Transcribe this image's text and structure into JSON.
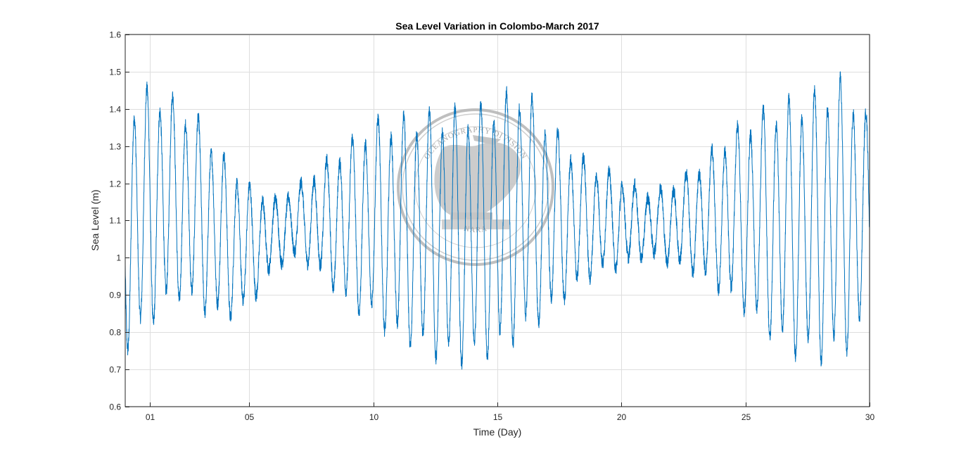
{
  "chart_data": {
    "type": "line",
    "title": "Sea Level Variation in Colombo-March 2017",
    "xlabel": "Time (Day)",
    "ylabel": "Sea Level (m)",
    "xlim": [
      0,
      30
    ],
    "ylim": [
      0.6,
      1.6
    ],
    "grid": true,
    "x_ticks": [
      {
        "value": 1,
        "label": "01"
      },
      {
        "value": 5,
        "label": "05"
      },
      {
        "value": 10,
        "label": "10"
      },
      {
        "value": 15,
        "label": "15"
      },
      {
        "value": 20,
        "label": "20"
      },
      {
        "value": 25,
        "label": "25"
      },
      {
        "value": 30,
        "label": "30"
      }
    ],
    "y_ticks": [
      {
        "value": 0.6,
        "label": "0.6"
      },
      {
        "value": 0.7,
        "label": "0.7"
      },
      {
        "value": 0.8,
        "label": "0.8"
      },
      {
        "value": 0.9,
        "label": "0.9"
      },
      {
        "value": 1.0,
        "label": "1"
      },
      {
        "value": 1.1,
        "label": "1.1"
      },
      {
        "value": 1.2,
        "label": "1.2"
      },
      {
        "value": 1.3,
        "label": "1.3"
      },
      {
        "value": 1.4,
        "label": "1.4"
      },
      {
        "value": 1.5,
        "label": "1.5"
      },
      {
        "value": 1.6,
        "label": "1.6"
      }
    ],
    "series": [
      {
        "name": "Sea Level",
        "color": "#0072bd",
        "tidal_period_days": 0.5175,
        "envelope": {
          "x": [
            0.0,
            1.0,
            2.0,
            3.0,
            4.0,
            5.0,
            6.0,
            7.0,
            8.0,
            9.0,
            10.0,
            11.0,
            12.0,
            13.0,
            14.0,
            15.0,
            16.0,
            17.0,
            18.0,
            19.0,
            20.0,
            21.0,
            22.0,
            23.0,
            24.0,
            25.0,
            26.0,
            27.0,
            28.0,
            29.0,
            30.0
          ],
          "high": [
            1.43,
            1.47,
            1.44,
            1.38,
            1.28,
            1.2,
            1.16,
            1.2,
            1.26,
            1.32,
            1.38,
            1.39,
            1.4,
            1.41,
            1.42,
            1.44,
            1.48,
            1.38,
            1.3,
            1.25,
            1.22,
            1.18,
            1.2,
            1.25,
            1.32,
            1.38,
            1.42,
            1.44,
            1.47,
            1.5,
            1.38
          ],
          "low": [
            0.73,
            0.8,
            0.88,
            0.85,
            0.82,
            0.86,
            0.97,
            1.0,
            0.94,
            0.86,
            0.82,
            0.76,
            0.73,
            0.7,
            0.7,
            0.73,
            0.77,
            0.83,
            0.9,
            0.95,
            0.97,
            1.0,
            0.98,
            0.95,
            0.9,
            0.84,
            0.77,
            0.72,
            0.7,
            0.72,
            0.82
          ]
        }
      }
    ]
  },
  "watermark": {
    "top_text": "OCEANOGRAPHY DIVISION",
    "bottom_text": "NARA"
  }
}
